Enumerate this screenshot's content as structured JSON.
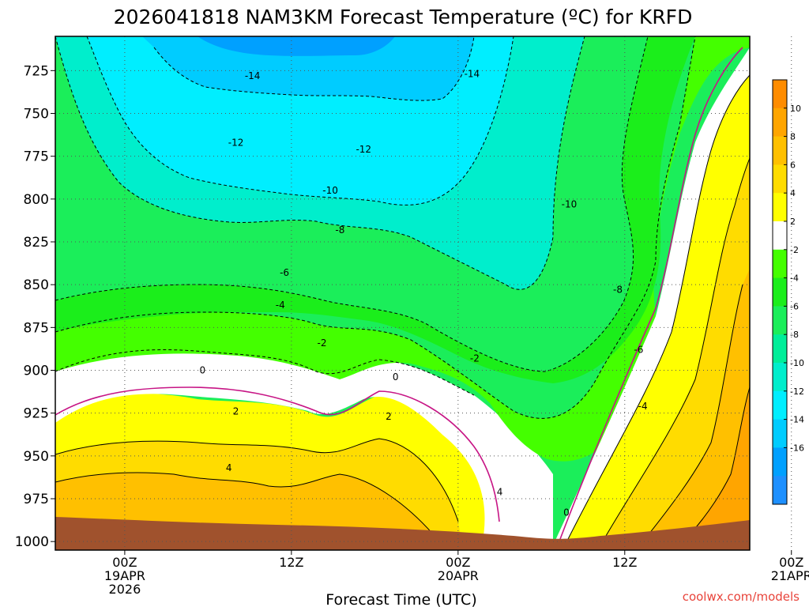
{
  "chart_data": {
    "type": "contour",
    "title": "2026041818 NAM3KM Forecast Temperature (ºC) for KRFD",
    "xlabel": "Forecast Time (UTC)",
    "ylabel": "",
    "credit": "coolwx.com/models",
    "x_hours_range": [
      -5,
      45
    ],
    "ylim_hpa": [
      1005,
      705
    ],
    "y_ticks": [
      "725",
      "750",
      "775",
      "800",
      "825",
      "850",
      "875",
      "900",
      "925",
      "950",
      "975",
      "1000"
    ],
    "x_ticks": [
      {
        "hour": 0,
        "lines": [
          "00Z",
          "19APR",
          "2026"
        ]
      },
      {
        "hour": 12,
        "lines": [
          "12Z"
        ]
      },
      {
        "hour": 24,
        "lines": [
          "00Z",
          "20APR"
        ]
      },
      {
        "hour": 36,
        "lines": [
          "12Z"
        ]
      },
      {
        "hour": 48,
        "lines": [
          "00Z",
          "21APR"
        ]
      }
    ],
    "colorbar": {
      "labels": [
        "10",
        "8",
        "6",
        "4",
        "2",
        "-2",
        "-4",
        "-6",
        "-8",
        "-10",
        "-12",
        "-14",
        "-16"
      ],
      "colors": [
        "#ff8c00",
        "#ffa500",
        "#ffc000",
        "#ffdc00",
        "#ffff00",
        "#ffffff",
        "#44ff00",
        "#1bee1b",
        "#1bee5a",
        "#00ee99",
        "#00eecc",
        "#00eeff",
        "#00ccff",
        "#00a0ff",
        "#1e90ff"
      ]
    },
    "contour_labels": [
      {
        "text": "-14",
        "t": 9.2,
        "p": 728
      },
      {
        "text": "-14",
        "t": 25.0,
        "p": 727
      },
      {
        "text": "-12",
        "t": 8.0,
        "p": 767
      },
      {
        "text": "-12",
        "t": 17.2,
        "p": 771
      },
      {
        "text": "-10",
        "t": 14.8,
        "p": 795
      },
      {
        "text": "-10",
        "t": 32.0,
        "p": 803
      },
      {
        "text": "-8",
        "t": 15.5,
        "p": 818
      },
      {
        "text": "-8",
        "t": 35.5,
        "p": 853
      },
      {
        "text": "-6",
        "t": 11.5,
        "p": 843
      },
      {
        "text": "-6",
        "t": 37.0,
        "p": 888
      },
      {
        "text": "-4",
        "t": 11.2,
        "p": 862
      },
      {
        "text": "-4",
        "t": 37.3,
        "p": 921
      },
      {
        "text": "-2",
        "t": 14.2,
        "p": 884
      },
      {
        "text": "-2",
        "t": 25.2,
        "p": 893
      },
      {
        "text": "0",
        "t": 5.6,
        "p": 900
      },
      {
        "text": "0",
        "t": 19.5,
        "p": 904
      },
      {
        "text": "0",
        "t": 31.8,
        "p": 983
      },
      {
        "text": "2",
        "t": 8.0,
        "p": 924
      },
      {
        "text": "2",
        "t": 19.0,
        "p": 927
      },
      {
        "text": "4",
        "t": 7.5,
        "p": 957
      },
      {
        "text": "4",
        "t": 27.0,
        "p": 971
      }
    ]
  }
}
